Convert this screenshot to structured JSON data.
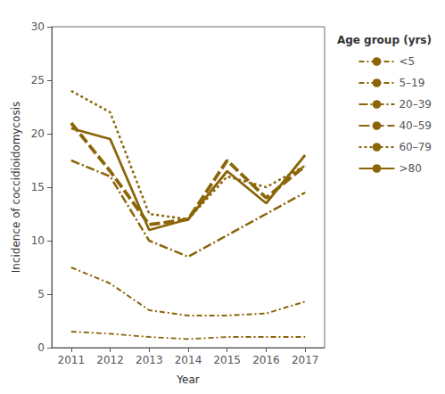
{
  "chart_data": {
    "type": "line",
    "x": [
      2011,
      2012,
      2013,
      2014,
      2015,
      2016,
      2017
    ],
    "xlabel": "Year",
    "ylabel": "Incidence of coccidioidomycosis",
    "xlim": [
      2010.5,
      2017.5
    ],
    "xticks": [
      2011,
      2012,
      2013,
      2014,
      2015,
      2016,
      2017
    ],
    "ylim": [
      0,
      30
    ],
    "yticks": [
      0,
      5,
      10,
      15,
      20,
      25,
      30
    ],
    "grid": false,
    "legend": "right",
    "legend_title": "Age group (yrs)",
    "color": "#8B6508",
    "series": [
      {
        "name": "<5",
        "line_style": "dashdot",
        "values": [
          1.5,
          1.3,
          1.0,
          0.8,
          1.0,
          1.0,
          1.0
        ]
      },
      {
        "name": "5–19",
        "line_style": "dashdot",
        "values": [
          7.5,
          6.0,
          3.5,
          3.0,
          3.0,
          3.2,
          4.3
        ]
      },
      {
        "name": "20–39",
        "line_style": "longdashdot",
        "values": [
          17.5,
          16.0,
          10.0,
          8.5,
          10.5,
          12.5,
          14.5
        ]
      },
      {
        "name": "40–59",
        "line_style": "longdash",
        "values": [
          21.0,
          16.5,
          11.5,
          12.0,
          17.5,
          14.0,
          17.0
        ]
      },
      {
        "name": "60–79",
        "line_style": "dotted",
        "values": [
          24.0,
          22.0,
          12.5,
          12.0,
          16.0,
          15.0,
          17.0
        ]
      },
      {
        "name": ">80",
        "line_style": "solid",
        "values": [
          20.5,
          19.5,
          11.0,
          12.0,
          16.5,
          13.5,
          18.0
        ]
      }
    ]
  }
}
